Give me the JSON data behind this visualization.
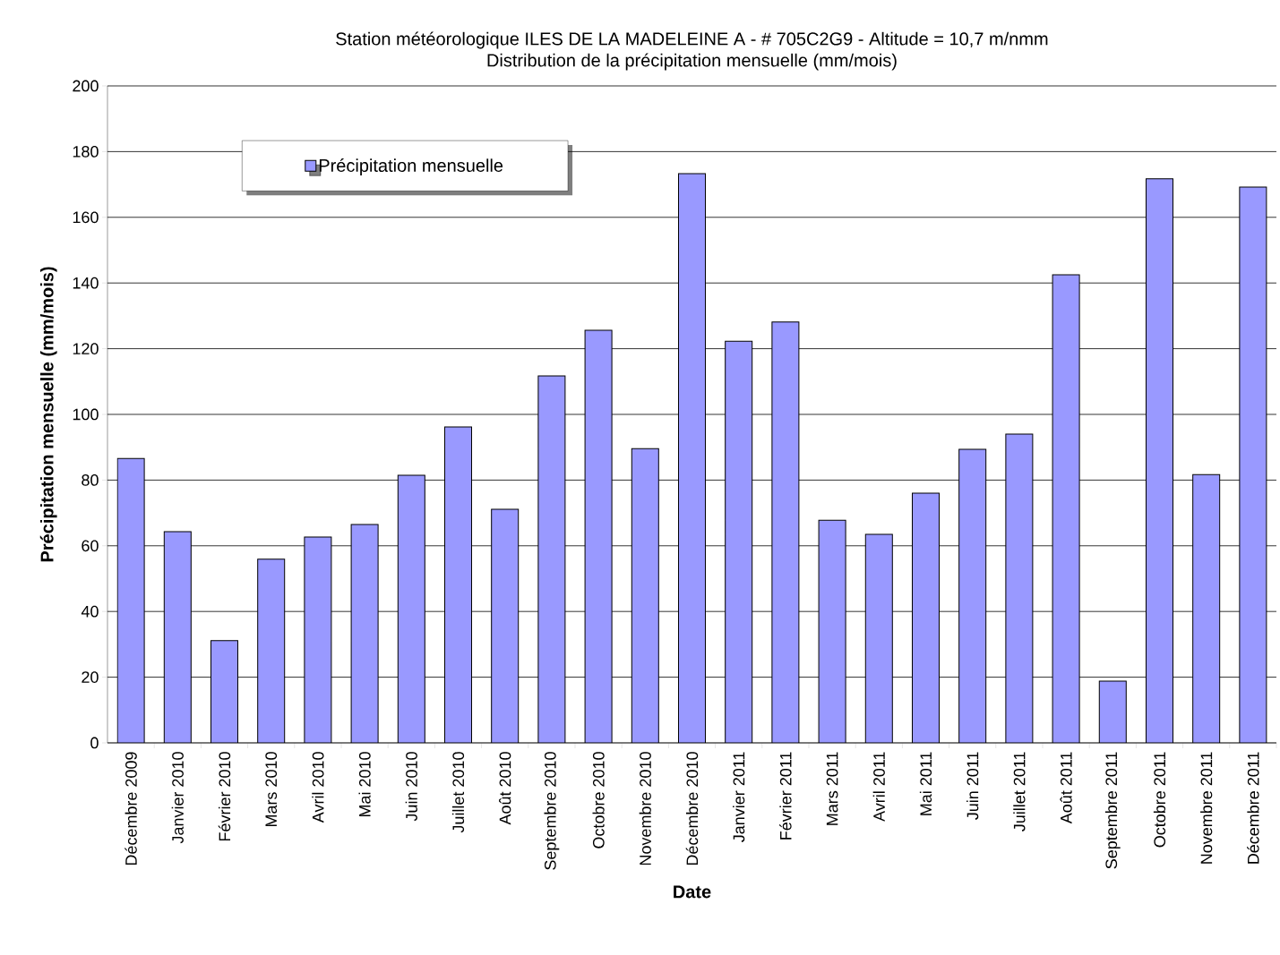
{
  "chart_data": {
    "type": "bar",
    "title": "Station météorologique ILES DE LA MADELEINE A - # 705C2G9 - Altitude = 10,7 m/nmm",
    "subtitle": "Distribution de la précipitation mensuelle (mm/mois)",
    "xlabel": "Date",
    "ylabel": "Précipitation mensuelle (mm/mois)",
    "categories": [
      "Décembre 2009",
      "Janvier 2010",
      "Février 2010",
      "Mars 2010",
      "Avril 2010",
      "Mai 2010",
      "Juin 2010",
      "Juillet 2010",
      "Août 2010",
      "Septembre 2010",
      "Octobre 2010",
      "Novembre 2010",
      "Décembre 2010",
      "Janvier 2011",
      "Février 2011",
      "Mars 2011",
      "Avril 2011",
      "Mai 2011",
      "Juin 2011",
      "Juillet 2011",
      "Août 2011",
      "Septembre 2011",
      "Octobre 2011",
      "Novembre 2011",
      "Décembre 2011"
    ],
    "series": [
      {
        "name": "Précipitation mensuelle",
        "color": "#9999ff",
        "values": [
          86.6,
          64.3,
          31.1,
          55.9,
          62.7,
          66.5,
          81.5,
          96.2,
          71.1,
          111.7,
          125.6,
          89.6,
          173.3,
          122.3,
          128.1,
          67.8,
          63.5,
          76.0,
          89.4,
          94.0,
          142.5,
          18.8,
          171.7,
          81.7,
          169.2
        ]
      }
    ],
    "ylim": [
      0,
      200
    ],
    "yticks": [
      0,
      20,
      40,
      60,
      80,
      100,
      120,
      140,
      160,
      180,
      200
    ],
    "grid": "y",
    "legend": "top left"
  }
}
